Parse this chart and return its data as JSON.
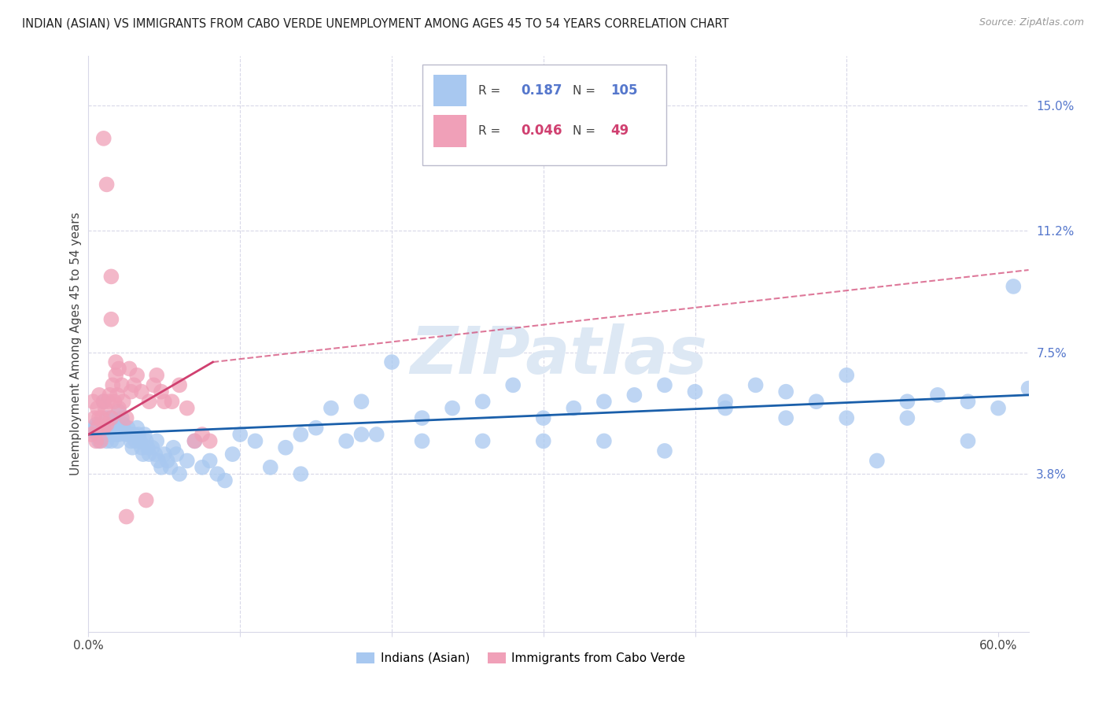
{
  "title": "INDIAN (ASIAN) VS IMMIGRANTS FROM CABO VERDE UNEMPLOYMENT AMONG AGES 45 TO 54 YEARS CORRELATION CHART",
  "source": "Source: ZipAtlas.com",
  "ylabel": "Unemployment Among Ages 45 to 54 years",
  "xlim": [
    0.0,
    0.62
  ],
  "ylim": [
    -0.01,
    0.165
  ],
  "ytick_positions": [
    0.038,
    0.075,
    0.112,
    0.15
  ],
  "ytick_labels": [
    "3.8%",
    "7.5%",
    "11.2%",
    "15.0%"
  ],
  "blue_color": "#a8c8f0",
  "pink_color": "#f0a0b8",
  "trend_blue_color": "#1a5faa",
  "trend_pink_color": "#d04070",
  "watermark": "ZIPatlas",
  "watermark_color": "#dde8f4",
  "background_color": "#ffffff",
  "grid_color": "#d8d8e8",
  "axis_label_color": "#5577cc",
  "blue_scatter_x": [
    0.003,
    0.004,
    0.005,
    0.006,
    0.007,
    0.008,
    0.009,
    0.01,
    0.01,
    0.011,
    0.012,
    0.012,
    0.013,
    0.014,
    0.015,
    0.015,
    0.016,
    0.017,
    0.018,
    0.019,
    0.02,
    0.02,
    0.021,
    0.022,
    0.023,
    0.024,
    0.025,
    0.026,
    0.027,
    0.028,
    0.029,
    0.03,
    0.031,
    0.032,
    0.033,
    0.034,
    0.035,
    0.036,
    0.037,
    0.038,
    0.039,
    0.04,
    0.042,
    0.044,
    0.045,
    0.046,
    0.048,
    0.05,
    0.052,
    0.054,
    0.056,
    0.058,
    0.06,
    0.065,
    0.07,
    0.075,
    0.08,
    0.085,
    0.09,
    0.095,
    0.1,
    0.11,
    0.12,
    0.13,
    0.14,
    0.15,
    0.16,
    0.17,
    0.18,
    0.19,
    0.2,
    0.22,
    0.24,
    0.26,
    0.28,
    0.3,
    0.32,
    0.34,
    0.36,
    0.38,
    0.4,
    0.42,
    0.44,
    0.46,
    0.48,
    0.5,
    0.52,
    0.54,
    0.56,
    0.58,
    0.6,
    0.61,
    0.62,
    0.58,
    0.54,
    0.5,
    0.46,
    0.42,
    0.38,
    0.34,
    0.3,
    0.26,
    0.22,
    0.18,
    0.14
  ],
  "blue_scatter_y": [
    0.051,
    0.052,
    0.053,
    0.05,
    0.048,
    0.049,
    0.05,
    0.051,
    0.06,
    0.052,
    0.048,
    0.055,
    0.053,
    0.05,
    0.048,
    0.055,
    0.054,
    0.052,
    0.05,
    0.048,
    0.05,
    0.057,
    0.052,
    0.055,
    0.053,
    0.051,
    0.05,
    0.052,
    0.05,
    0.048,
    0.046,
    0.05,
    0.048,
    0.052,
    0.05,
    0.048,
    0.046,
    0.044,
    0.05,
    0.048,
    0.046,
    0.044,
    0.046,
    0.044,
    0.048,
    0.042,
    0.04,
    0.044,
    0.042,
    0.04,
    0.046,
    0.044,
    0.038,
    0.042,
    0.048,
    0.04,
    0.042,
    0.038,
    0.036,
    0.044,
    0.05,
    0.048,
    0.04,
    0.046,
    0.038,
    0.052,
    0.058,
    0.048,
    0.06,
    0.05,
    0.072,
    0.055,
    0.058,
    0.06,
    0.065,
    0.055,
    0.058,
    0.06,
    0.062,
    0.065,
    0.063,
    0.06,
    0.065,
    0.063,
    0.06,
    0.068,
    0.042,
    0.06,
    0.062,
    0.06,
    0.058,
    0.095,
    0.064,
    0.048,
    0.055,
    0.055,
    0.055,
    0.058,
    0.045,
    0.048,
    0.048,
    0.048,
    0.048,
    0.05,
    0.05
  ],
  "pink_scatter_x": [
    0.002,
    0.003,
    0.004,
    0.005,
    0.006,
    0.006,
    0.007,
    0.007,
    0.008,
    0.009,
    0.01,
    0.01,
    0.011,
    0.012,
    0.013,
    0.014,
    0.015,
    0.016,
    0.017,
    0.018,
    0.019,
    0.02,
    0.022,
    0.023,
    0.025,
    0.027,
    0.028,
    0.03,
    0.032,
    0.035,
    0.038,
    0.04,
    0.043,
    0.045,
    0.048,
    0.05,
    0.055,
    0.06,
    0.065,
    0.07,
    0.075,
    0.08,
    0.01,
    0.012,
    0.015,
    0.015,
    0.018,
    0.02,
    0.025
  ],
  "pink_scatter_y": [
    0.05,
    0.06,
    0.055,
    0.048,
    0.052,
    0.058,
    0.055,
    0.062,
    0.048,
    0.055,
    0.052,
    0.06,
    0.058,
    0.053,
    0.06,
    0.062,
    0.055,
    0.065,
    0.06,
    0.068,
    0.062,
    0.058,
    0.065,
    0.06,
    0.055,
    0.07,
    0.063,
    0.065,
    0.068,
    0.063,
    0.03,
    0.06,
    0.065,
    0.068,
    0.063,
    0.06,
    0.06,
    0.065,
    0.058,
    0.048,
    0.05,
    0.048,
    0.14,
    0.126,
    0.098,
    0.085,
    0.072,
    0.07,
    0.025
  ],
  "trend_blue_x0": 0.0,
  "trend_blue_y0": 0.05,
  "trend_blue_x1": 0.62,
  "trend_blue_y1": 0.062,
  "trend_pink_x0": 0.0,
  "trend_pink_y0": 0.05,
  "trend_pink_x1": 0.082,
  "trend_pink_y1": 0.072
}
